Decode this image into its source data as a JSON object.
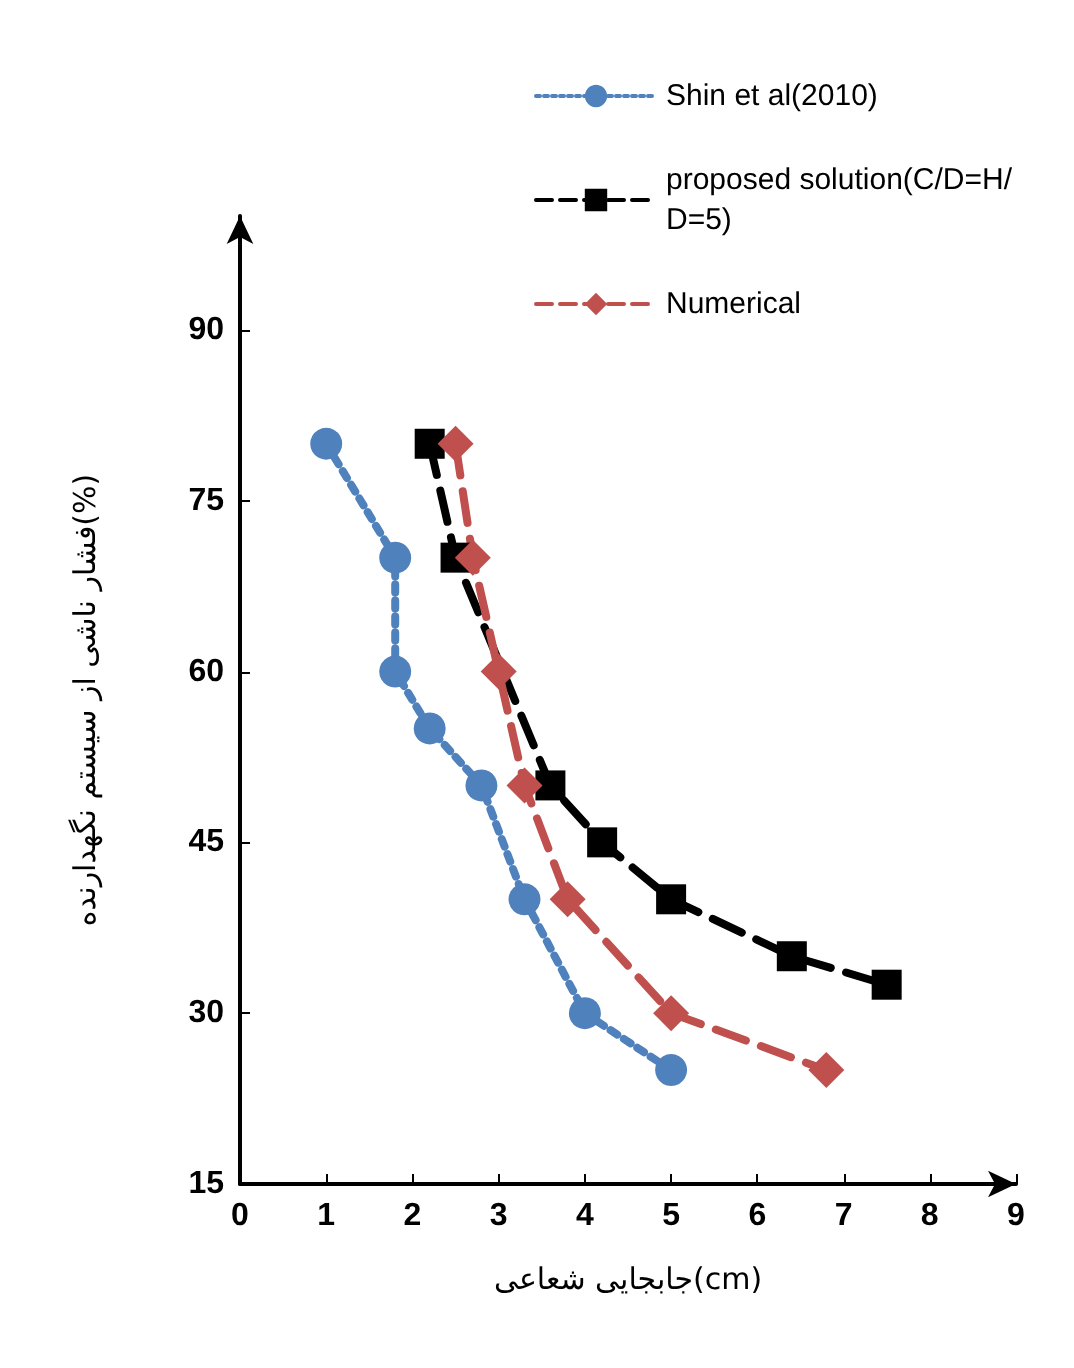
{
  "chart_data": {
    "type": "line",
    "xlabel": "جابجایی شعاعی(cm)",
    "ylabel": "فشار ناشی از سیستم نگهدارنده(%)",
    "xlim": [
      0,
      9
    ],
    "xticks": [
      0,
      1,
      2,
      3,
      4,
      5,
      6,
      7,
      8,
      9
    ],
    "ylim": [
      15,
      100
    ],
    "yticks": [
      15,
      30,
      45,
      60,
      75,
      90
    ],
    "grid": false,
    "legend": "top right",
    "series": [
      {
        "name": "Shin et al(2010)",
        "color": "#4f81bd",
        "marker": "circle",
        "line_style": "dotted",
        "x": [
          1.0,
          1.8,
          1.8,
          2.2,
          2.8,
          3.3,
          4.0,
          5.0
        ],
        "values": [
          80,
          70,
          60,
          55,
          50,
          40,
          30,
          25
        ]
      },
      {
        "name": "proposed solution(C/D=H/D=5)",
        "color": "#000000",
        "marker": "square",
        "line_style": "dashed",
        "x": [
          2.2,
          2.5,
          3.6,
          4.2,
          5.0,
          6.4,
          7.5
        ],
        "values": [
          80,
          70,
          50,
          45,
          40,
          35,
          32.5
        ]
      },
      {
        "name": "Numerical",
        "color": "#c0504d",
        "marker": "diamond",
        "line_style": "dashed",
        "x": [
          2.5,
          2.7,
          3.0,
          3.3,
          3.8,
          5.0,
          6.8
        ],
        "values": [
          80,
          70,
          60,
          50,
          40,
          30,
          25
        ]
      }
    ]
  }
}
